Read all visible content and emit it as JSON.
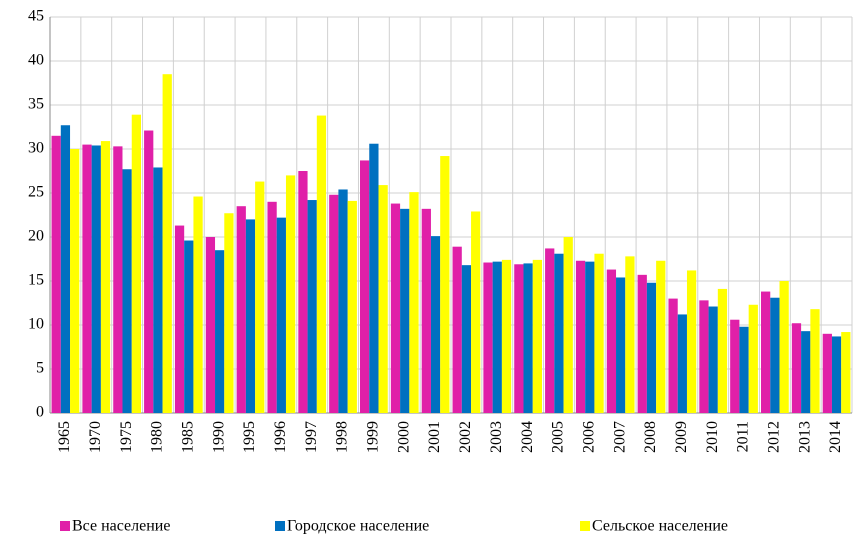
{
  "chart_data": {
    "type": "bar",
    "categories": [
      "1965",
      "1970",
      "1975",
      "1980",
      "1985",
      "1990",
      "1995",
      "1996",
      "1997",
      "1998",
      "1999",
      "2000",
      "2001",
      "2002",
      "2003",
      "2004",
      "2005",
      "2006",
      "2007",
      "2008",
      "2009",
      "2010",
      "2011",
      "2012",
      "2013",
      "2014"
    ],
    "series": [
      {
        "name": "Все население",
        "color": "#e020a8",
        "values": [
          31.5,
          30.5,
          30.3,
          32.1,
          21.3,
          20.0,
          23.5,
          24.0,
          27.5,
          24.8,
          28.7,
          23.8,
          23.2,
          18.9,
          17.1,
          16.9,
          18.7,
          17.3,
          16.3,
          15.7,
          13.0,
          12.8,
          10.6,
          13.8,
          10.2,
          9.0
        ]
      },
      {
        "name": "Городское население",
        "color": "#0070c0",
        "values": [
          32.7,
          30.4,
          27.7,
          27.9,
          19.6,
          18.5,
          22.0,
          22.2,
          24.2,
          25.4,
          30.6,
          23.2,
          20.1,
          16.8,
          17.2,
          17.0,
          18.1,
          17.2,
          15.4,
          14.8,
          11.2,
          12.1,
          9.8,
          13.1,
          9.3,
          8.7
        ]
      },
      {
        "name": "Сельское население",
        "color": "#ffff00",
        "values": [
          30.0,
          30.9,
          33.9,
          38.5,
          24.6,
          22.7,
          26.3,
          27.0,
          33.8,
          24.1,
          25.9,
          25.1,
          29.2,
          22.9,
          17.4,
          17.4,
          20.0,
          18.1,
          17.8,
          17.3,
          16.2,
          14.1,
          12.3,
          15.0,
          11.8,
          9.2
        ]
      }
    ],
    "ylim": [
      0,
      45
    ],
    "yticks": [
      0,
      5,
      10,
      15,
      20,
      25,
      30,
      35,
      40,
      45
    ],
    "grid": true,
    "legend": "bottom"
  }
}
